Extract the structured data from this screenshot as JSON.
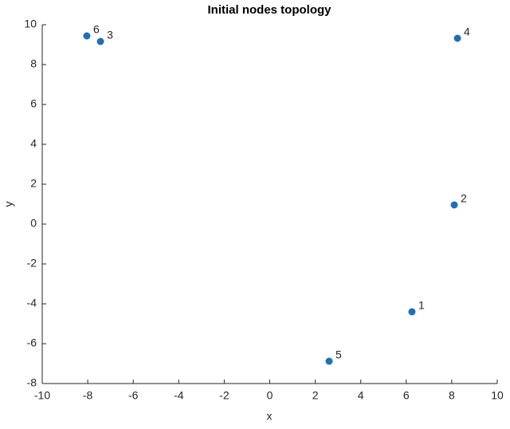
{
  "chart_data": {
    "type": "scatter",
    "title": "Initial nodes topology",
    "xlabel": "x",
    "ylabel": "y",
    "x": [
      6.25,
      8.11,
      -7.44,
      8.25,
      2.61,
      -8.04
    ],
    "y": [
      -4.4,
      0.96,
      9.16,
      9.32,
      -6.88,
      9.44
    ],
    "point_labels": [
      "1",
      "2",
      "3",
      "4",
      "5",
      "6"
    ],
    "color": "#1f6fb5",
    "xlim": [
      -10,
      10
    ],
    "xticks": [
      -10,
      -8,
      -6,
      -4,
      -2,
      0,
      2,
      4,
      6,
      8,
      10
    ],
    "ylim": [
      -8,
      10
    ],
    "yticks": [
      -8,
      -6,
      -4,
      -2,
      0,
      2,
      4,
      6,
      8,
      10
    ],
    "grid": false
  }
}
